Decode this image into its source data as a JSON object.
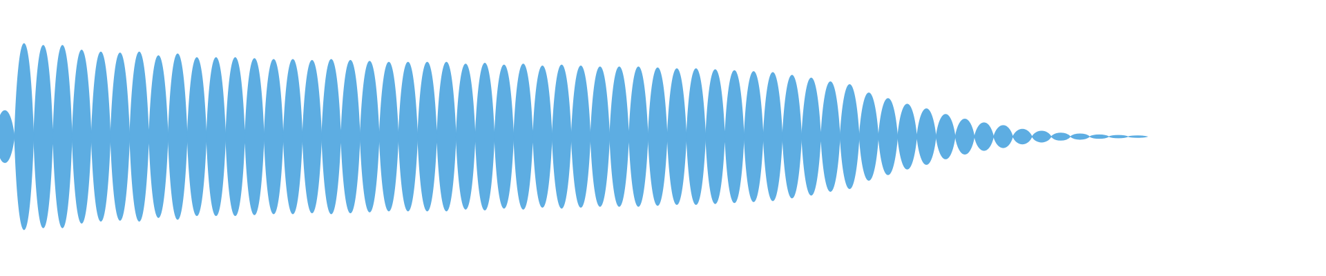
{
  "waveform": {
    "color": "#5dade2",
    "amplitudes": [
      0.28,
      1.0,
      0.98,
      0.98,
      0.93,
      0.91,
      0.9,
      0.91,
      0.87,
      0.89,
      0.85,
      0.85,
      0.85,
      0.84,
      0.83,
      0.83,
      0.82,
      0.83,
      0.82,
      0.81,
      0.8,
      0.8,
      0.8,
      0.8,
      0.78,
      0.79,
      0.77,
      0.78,
      0.76,
      0.77,
      0.76,
      0.75,
      0.75,
      0.75,
      0.74,
      0.73,
      0.73,
      0.72,
      0.71,
      0.7,
      0.69,
      0.66,
      0.63,
      0.59,
      0.56,
      0.47,
      0.41,
      0.35,
      0.3,
      0.24,
      0.19,
      0.15,
      0.12,
      0.08,
      0.06,
      0.04,
      0.03,
      0.02,
      0.015,
      0.01
    ]
  }
}
